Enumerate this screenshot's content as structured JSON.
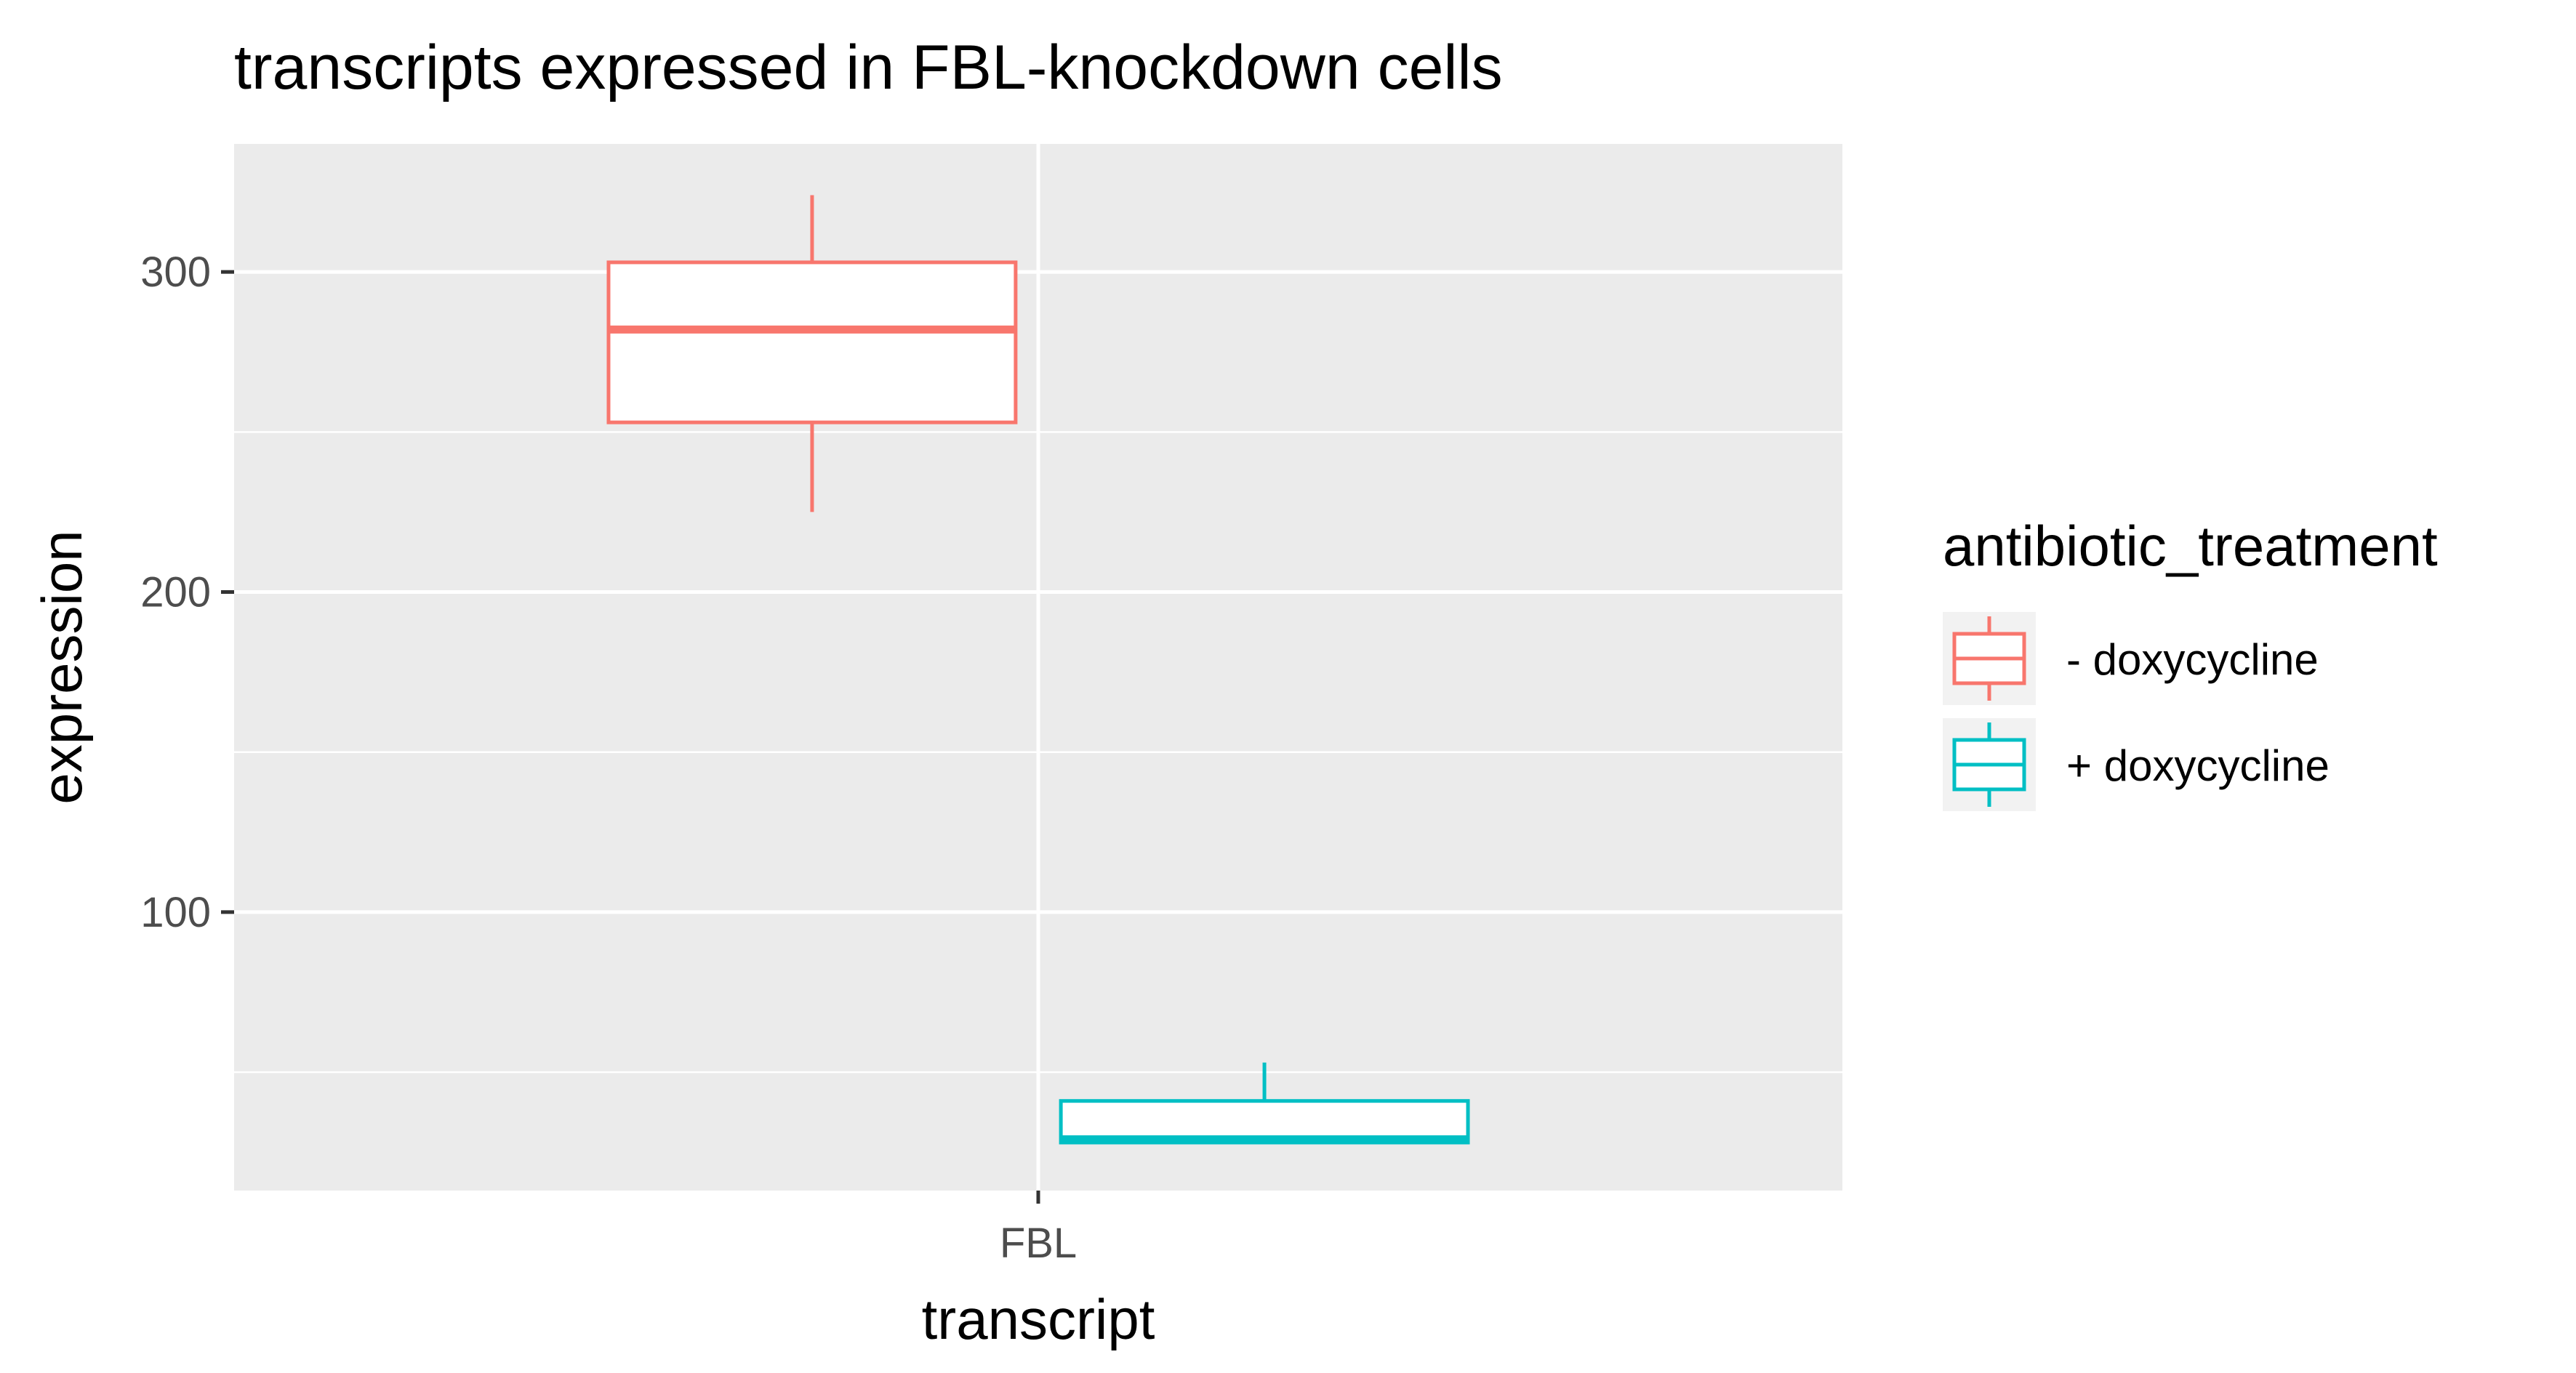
{
  "chart_data": {
    "type": "box",
    "title": "transcripts expressed in FBL-knockdown cells",
    "xlabel": "transcript",
    "ylabel": "expression",
    "categories": [
      "FBL"
    ],
    "y_ticks": [
      100,
      200,
      300
    ],
    "y_tick_labels": [
      "100",
      "200",
      "300"
    ],
    "ylim": [
      13,
      340
    ],
    "grid": true,
    "legend": {
      "title": "antibiotic_treatment",
      "position": "right",
      "entries": [
        "- doxycycline",
        "+ doxycycline"
      ]
    },
    "series": [
      {
        "name": "- doxycycline",
        "color": "#F8766D",
        "category": "FBL",
        "whisker_low": 225,
        "q1": 253,
        "median": 282,
        "q3": 303,
        "whisker_high": 324
      },
      {
        "name": "+ doxycycline",
        "color": "#00BFC4",
        "category": "FBL",
        "whisker_low": 28,
        "q1": 28,
        "median": 29,
        "q3": 41,
        "whisker_high": 53
      }
    ]
  }
}
